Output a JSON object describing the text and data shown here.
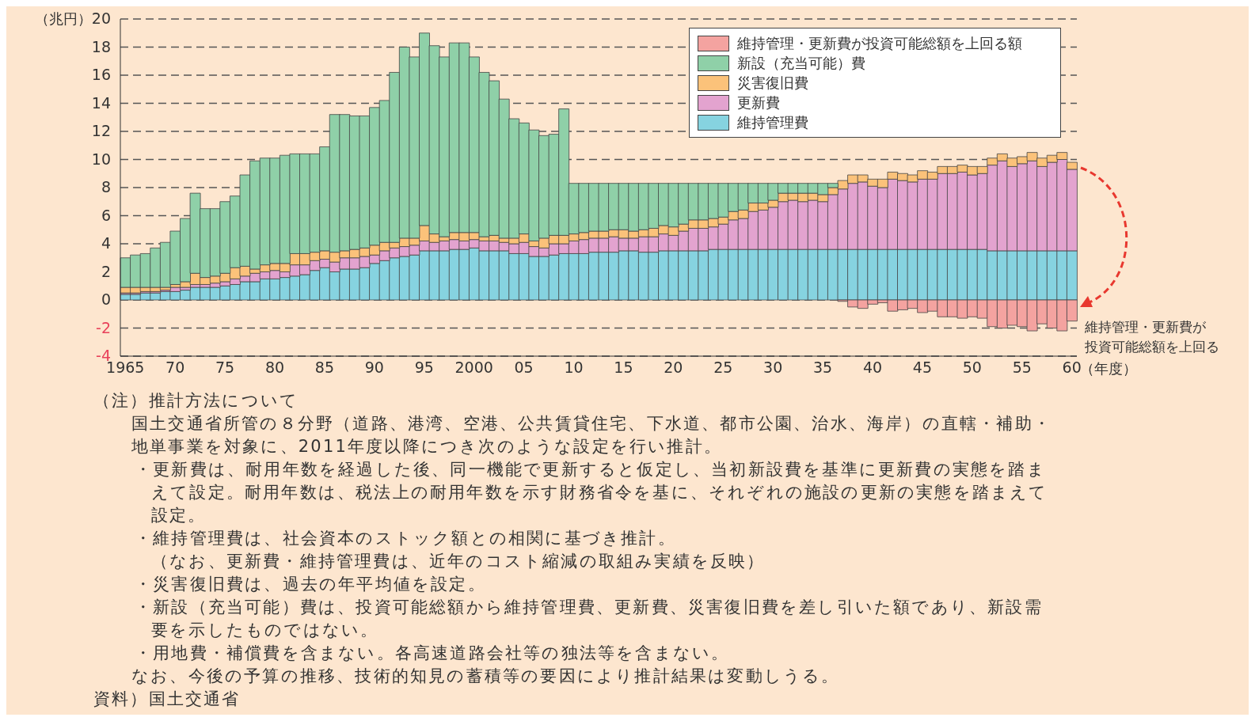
{
  "chart_data": {
    "type": "bar",
    "stacked": true,
    "ylabel": "（兆円）",
    "xlabel": "（年度）",
    "categories": [
      "1965",
      null,
      null,
      null,
      null,
      "70",
      null,
      null,
      null,
      null,
      "75",
      null,
      null,
      null,
      null,
      "80",
      null,
      null,
      null,
      null,
      "85",
      null,
      null,
      null,
      null,
      "90",
      null,
      null,
      null,
      null,
      "95",
      null,
      null,
      null,
      null,
      "2000",
      null,
      null,
      null,
      null,
      "05",
      null,
      null,
      null,
      null,
      "10",
      null,
      null,
      null,
      null,
      "15",
      null,
      null,
      null,
      null,
      "20",
      null,
      null,
      null,
      null,
      "25",
      null,
      null,
      null,
      null,
      "30",
      null,
      null,
      null,
      null,
      "35",
      null,
      null,
      null,
      null,
      "40",
      null,
      null,
      null,
      null,
      "45",
      null,
      null,
      null,
      null,
      "50",
      null,
      null,
      null,
      null,
      "55",
      null,
      null,
      null,
      null,
      "60"
    ],
    "series": [
      {
        "name": "維持管理費",
        "color": "#86d3e0",
        "values": [
          0.4,
          0.4,
          0.5,
          0.5,
          0.6,
          0.6,
          0.7,
          0.9,
          0.9,
          0.9,
          1.0,
          1.1,
          1.3,
          1.3,
          1.5,
          1.5,
          1.6,
          1.7,
          1.8,
          2.1,
          2.3,
          2.0,
          2.2,
          2.2,
          2.3,
          2.6,
          2.8,
          3.0,
          3.1,
          3.2,
          3.5,
          3.5,
          3.5,
          3.6,
          3.6,
          3.7,
          3.5,
          3.5,
          3.5,
          3.3,
          3.3,
          3.1,
          3.1,
          3.2,
          3.3,
          3.3,
          3.3,
          3.4,
          3.4,
          3.4,
          3.5,
          3.5,
          3.4,
          3.4,
          3.5,
          3.5,
          3.5,
          3.5,
          3.5,
          3.6,
          3.6,
          3.6,
          3.6,
          3.6,
          3.6,
          3.6,
          3.6,
          3.6,
          3.6,
          3.6,
          3.6,
          3.6,
          3.6,
          3.6,
          3.6,
          3.6,
          3.6,
          3.6,
          3.6,
          3.6,
          3.6,
          3.6,
          3.6,
          3.6,
          3.6,
          3.6,
          3.6,
          3.5,
          3.5,
          3.5,
          3.5,
          3.5,
          3.5,
          3.5,
          3.5,
          3.5
        ]
      },
      {
        "name": "更新費",
        "color": "#e3a3cf",
        "values": [
          0.1,
          0.1,
          0.1,
          0.1,
          0.1,
          0.3,
          0.2,
          0.2,
          0.2,
          0.3,
          0.3,
          0.4,
          0.4,
          0.6,
          0.5,
          0.6,
          0.4,
          0.8,
          0.7,
          0.7,
          0.6,
          0.7,
          0.8,
          0.8,
          0.8,
          0.6,
          0.7,
          0.7,
          0.7,
          0.7,
          0.7,
          0.6,
          0.7,
          0.7,
          0.6,
          0.6,
          0.7,
          0.7,
          0.6,
          0.7,
          0.8,
          0.7,
          0.6,
          0.8,
          0.7,
          0.9,
          1.0,
          1.0,
          1.0,
          1.1,
          0.9,
          0.9,
          1.1,
          1.1,
          1.2,
          1.1,
          1.4,
          1.6,
          1.6,
          1.6,
          1.8,
          2.1,
          2.2,
          2.7,
          2.8,
          3.0,
          3.4,
          3.5,
          3.4,
          3.5,
          3.4,
          3.9,
          4.3,
          4.7,
          4.8,
          4.5,
          4.4,
          5.0,
          4.9,
          4.8,
          5.0,
          5.0,
          5.4,
          5.4,
          5.5,
          5.3,
          5.4,
          6.1,
          6.4,
          6.0,
          6.2,
          6.4,
          6.0,
          6.3,
          6.5,
          5.8
        ]
      },
      {
        "name": "災害復旧費",
        "color": "#fbc27a",
        "values": [
          0.4,
          0.4,
          0.3,
          0.3,
          0.2,
          0.2,
          0.4,
          0.8,
          0.5,
          0.5,
          0.6,
          0.8,
          0.7,
          0.3,
          0.5,
          0.5,
          0.6,
          0.8,
          0.8,
          0.6,
          0.6,
          0.7,
          0.5,
          0.6,
          0.6,
          0.7,
          0.6,
          0.4,
          0.6,
          0.5,
          1.1,
          0.6,
          0.3,
          0.5,
          0.6,
          0.5,
          0.3,
          0.4,
          0.3,
          0.4,
          0.6,
          0.4,
          0.7,
          0.6,
          0.6,
          0.5,
          0.5,
          0.5,
          0.5,
          0.5,
          0.6,
          0.5,
          0.5,
          0.6,
          0.6,
          0.6,
          0.5,
          0.6,
          0.6,
          0.6,
          0.5,
          0.6,
          0.6,
          0.6,
          0.5,
          0.5,
          0.6,
          0.5,
          0.6,
          0.5,
          0.5,
          0.5,
          0.6,
          0.6,
          0.5,
          0.5,
          0.6,
          0.5,
          0.5,
          0.5,
          0.6,
          0.5,
          0.5,
          0.5,
          0.5,
          0.6,
          0.5,
          0.5,
          0.5,
          0.6,
          0.5,
          0.6,
          0.6,
          0.5,
          0.5,
          0.5
        ]
      },
      {
        "name": "新設（充当可能）費",
        "color": "#8fd0a8",
        "values": [
          2.1,
          2.3,
          2.4,
          2.8,
          3.2,
          3.8,
          4.5,
          5.7,
          4.9,
          4.8,
          5.1,
          5.1,
          6.5,
          7.7,
          7.6,
          7.5,
          7.7,
          7.1,
          7.1,
          7.0,
          7.4,
          9.8,
          9.7,
          9.5,
          9.4,
          9.8,
          10.1,
          12.1,
          13.6,
          12.9,
          13.7,
          13.4,
          12.8,
          13.5,
          13.5,
          12.5,
          11.7,
          11.0,
          9.9,
          8.5,
          7.9,
          7.9,
          7.3,
          7.2,
          9.0,
          3.6,
          3.5,
          3.4,
          3.4,
          3.3,
          3.3,
          3.4,
          3.3,
          3.2,
          3.0,
          3.1,
          2.9,
          2.6,
          2.6,
          2.5,
          2.4,
          2.0,
          1.9,
          1.4,
          1.4,
          1.2,
          0.7,
          0.7,
          0.7,
          0.7,
          0.8,
          0.3,
          null,
          null,
          null,
          null,
          null,
          null,
          null,
          null,
          null,
          null,
          null,
          null,
          null,
          null,
          null,
          null,
          null,
          null,
          null,
          null,
          null,
          null,
          null,
          null
        ]
      },
      {
        "name": "維持管理・更新費が投資可能総額を上回る額",
        "color": "#f4a3a0",
        "values": [
          null,
          null,
          null,
          null,
          null,
          null,
          null,
          null,
          null,
          null,
          null,
          null,
          null,
          null,
          null,
          null,
          null,
          null,
          null,
          null,
          null,
          null,
          null,
          null,
          null,
          null,
          null,
          null,
          null,
          null,
          null,
          null,
          null,
          null,
          null,
          null,
          null,
          null,
          null,
          null,
          null,
          null,
          null,
          null,
          null,
          null,
          null,
          null,
          null,
          null,
          null,
          null,
          null,
          null,
          null,
          null,
          null,
          null,
          null,
          null,
          null,
          null,
          null,
          null,
          null,
          null,
          null,
          null,
          null,
          null,
          null,
          null,
          -0.1,
          -0.5,
          -0.6,
          -0.3,
          -0.2,
          -0.8,
          -0.7,
          -0.6,
          -0.9,
          -0.8,
          -1.2,
          -1.2,
          -1.3,
          -1.2,
          -1.3,
          -1.9,
          -2.0,
          -1.8,
          -1.9,
          -2.2,
          -1.7,
          -2.0,
          -2.2,
          -1.5
        ]
      }
    ],
    "ylim": [
      -4,
      20
    ],
    "yticks": [
      -4,
      -2,
      0,
      2,
      4,
      6,
      8,
      10,
      12,
      14,
      16,
      18,
      20
    ],
    "grid": "y",
    "legend": "top right",
    "annotations": [
      "維持管理・更新費が",
      "投資可能総額を上回る",
      "（注）推計方法について",
      "国土交通省所管の８分野（道路、港湾、空港、公共賃貸住宅、下水道、都市公園、治水、海岸）の直轄・補助・地単事業を対象に、2011年度以降につき次のような設定を行い推計。",
      "・更新費は、耐用年数を経過した後、同一機能で更新すると仮定し、当初新設費を基準に更新費の実態を踏まえて設定。耐用年数は、税法上の耐用年数を示す財務省令を基に、それぞれの施設の更新の実態を踏まえて設定。",
      "・維持管理費は、社会資本のストック額との相関に基づき推計。",
      "（なお、更新費・維持管理費は、近年のコスト縮減の取組み実績を反映）",
      "・災害復旧費は、過去の年平均値を設定。",
      "・新設（充当可能）費は、投資可能総額から維持管理費、更新費、災害復旧費を差し引いた額であり、新設需要を示したものではない。",
      "・用地費・補償費を含まない。各高速道路会社等の独法等を含まない。",
      "なお、今後の予算の推移、技術的知見の蓄積等の要因により推計結果は変動しうる。",
      "資料）国土交通省"
    ]
  }
}
